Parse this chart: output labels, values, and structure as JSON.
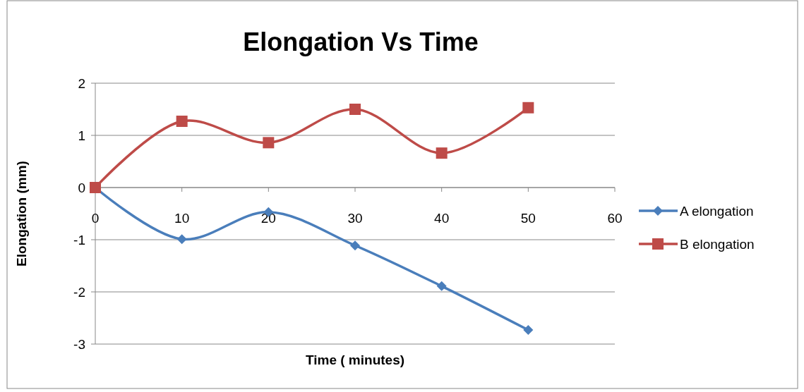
{
  "chart_data": {
    "type": "line",
    "title": "Elongation Vs Time",
    "xlabel": "Time ( minutes)",
    "ylabel": "Elongation (mm)",
    "xlim": [
      0,
      60
    ],
    "xticks": [
      0,
      10,
      20,
      30,
      40,
      50,
      60
    ],
    "ylim": [
      -3,
      2
    ],
    "yticks": [
      -3,
      -2,
      -1,
      0,
      1,
      2
    ],
    "grid": "y",
    "legend": "right",
    "line_style": "solid",
    "series": [
      {
        "name": "A elongation",
        "color": "#4a7ebb",
        "marker": "diamond",
        "x": [
          0,
          10,
          20,
          30,
          40,
          50
        ],
        "values": [
          0,
          -0.99,
          -0.47,
          -1.11,
          -1.89,
          -2.73
        ]
      },
      {
        "name": "B elongation",
        "color": "#be4b48",
        "marker": "square",
        "x": [
          0,
          10,
          20,
          30,
          40,
          50
        ],
        "values": [
          0,
          1.27,
          0.86,
          1.5,
          0.66,
          1.53
        ]
      }
    ]
  }
}
